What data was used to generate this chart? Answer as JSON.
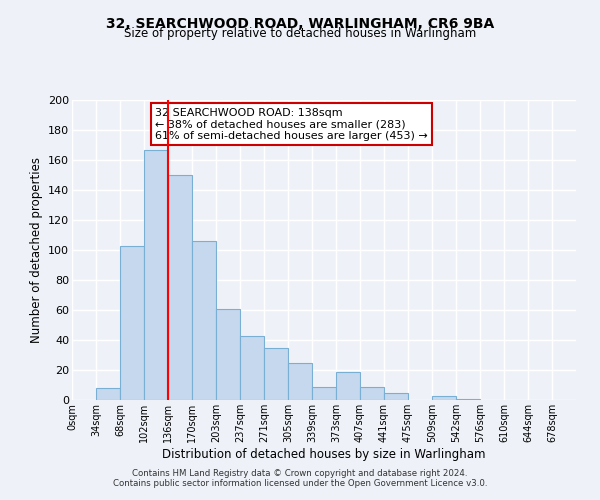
{
  "title": "32, SEARCHWOOD ROAD, WARLINGHAM, CR6 9BA",
  "subtitle": "Size of property relative to detached houses in Warlingham",
  "xlabel": "Distribution of detached houses by size in Warlingham",
  "ylabel": "Number of detached properties",
  "bar_color": "#c5d8ed",
  "bar_edgecolor": "#7aafd4",
  "background_color": "#eef2f8",
  "grid_color": "#ffffff",
  "tick_labels": [
    "0sqm",
    "34sqm",
    "68sqm",
    "102sqm",
    "136sqm",
    "170sqm",
    "203sqm",
    "237sqm",
    "271sqm",
    "305sqm",
    "339sqm",
    "373sqm",
    "407sqm",
    "441sqm",
    "475sqm",
    "509sqm",
    "542sqm",
    "576sqm",
    "610sqm",
    "644sqm",
    "678sqm"
  ],
  "bar_heights": [
    0,
    8,
    103,
    167,
    150,
    106,
    61,
    43,
    35,
    25,
    9,
    19,
    9,
    5,
    0,
    3,
    1,
    0,
    0,
    0,
    0
  ],
  "red_line_x": 4,
  "ylim": [
    0,
    200
  ],
  "yticks": [
    0,
    20,
    40,
    60,
    80,
    100,
    120,
    140,
    160,
    180,
    200
  ],
  "annotation_text_line1": "32 SEARCHWOOD ROAD: 138sqm",
  "annotation_text_line2": "← 38% of detached houses are smaller (283)",
  "annotation_text_line3": "61% of semi-detached houses are larger (453) →",
  "footer_line1": "Contains HM Land Registry data © Crown copyright and database right 2024.",
  "footer_line2": "Contains public sector information licensed under the Open Government Licence v3.0."
}
